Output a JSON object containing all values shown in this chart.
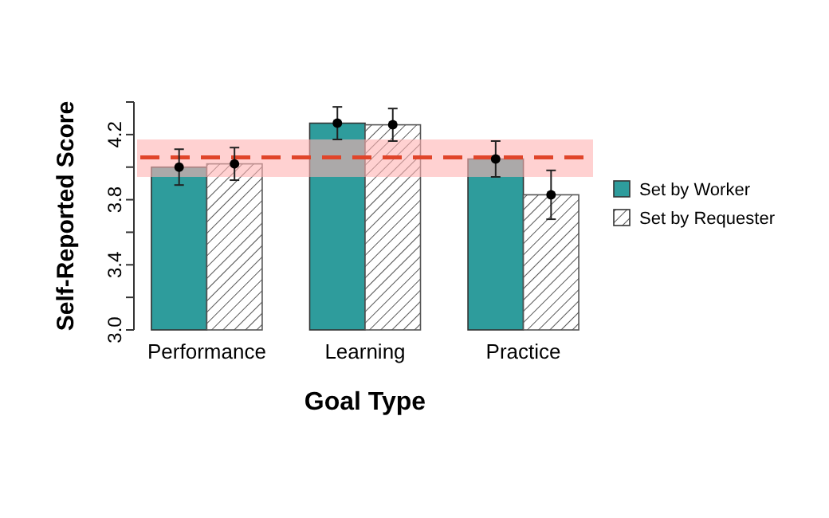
{
  "chart_data": {
    "type": "bar",
    "xlabel": "Goal Type",
    "ylabel": "Self-Reported Score",
    "categories": [
      "Performance",
      "Learning",
      "Practice"
    ],
    "series": [
      {
        "name": "Set by Worker",
        "color": "#2e9c9c",
        "values": [
          4.0,
          4.27,
          4.05
        ],
        "errors": [
          0.11,
          0.1,
          0.11
        ]
      },
      {
        "name": "Set by Requester",
        "color": "#555555",
        "values": [
          4.02,
          4.26,
          3.83
        ],
        "errors": [
          0.1,
          0.1,
          0.15
        ]
      },
      {
        "type": "scatter",
        "color": "#000000",
        "x": [
          "Performance",
          "Learning",
          "Practice"
        ],
        "values": [
          4.0,
          4.27,
          4.05
        ]
      },
      {
        "type": "scatter",
        "color": "#000000",
        "x": [
          "Performance",
          "Learning",
          "Practice"
        ],
        "values": [
          4.02,
          4.26,
          3.83
        ]
      }
    ],
    "ylim": [
      3.0,
      4.4
    ],
    "yticks": [
      {
        "value": 3.0,
        "label": "3.0"
      },
      {
        "value": 3.2,
        "label": null
      },
      3.4,
      {
        "value": 3.6,
        "label": null
      },
      3.8,
      {
        "value": 4.0,
        "label": null
      },
      4.2,
      {
        "value": 4.4,
        "label": null
      }
    ],
    "marker": "circle",
    "ref_lines": [
      {
        "axis": "y",
        "value": 4.06,
        "color": "#e0452a",
        "line_style": "dashed"
      }
    ],
    "bands": [
      {
        "axis": "y",
        "from": 3.94,
        "to": 4.17,
        "color": "#ffb3b3"
      }
    ],
    "legend": "right",
    "grid": false
  }
}
